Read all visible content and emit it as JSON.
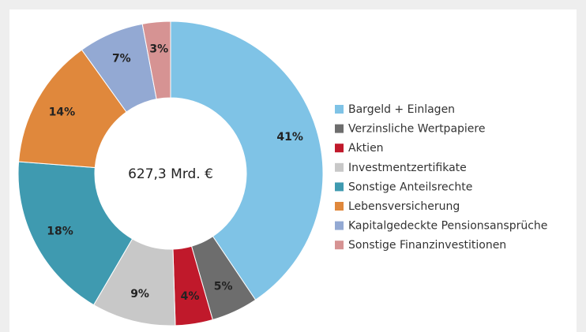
{
  "chart_data": {
    "type": "pie",
    "donut": true,
    "center_label": "627,3 Mrd. €",
    "categories": [
      "Bargeld + Einlagen",
      "Verzinsliche Wertpapiere",
      "Aktien",
      "Investmentzertifikate",
      "Sonstige Anteilsrechte",
      "Lebensversicherung",
      "Kapitalgedeckte Pensionsansprüche",
      "Sonstige Finanzinvestitionen"
    ],
    "values": [
      41,
      5,
      4,
      9,
      18,
      14,
      7,
      3
    ],
    "value_labels": [
      "41%",
      "5%",
      "4%",
      "9%",
      "18%",
      "14%",
      "7%",
      "3%"
    ],
    "colors": [
      "#7fc3e6",
      "#6d6d6d",
      "#c0192b",
      "#c8c8c8",
      "#3f9ab0",
      "#e0883c",
      "#93a9d3",
      "#d69393"
    ],
    "legend": "right"
  }
}
